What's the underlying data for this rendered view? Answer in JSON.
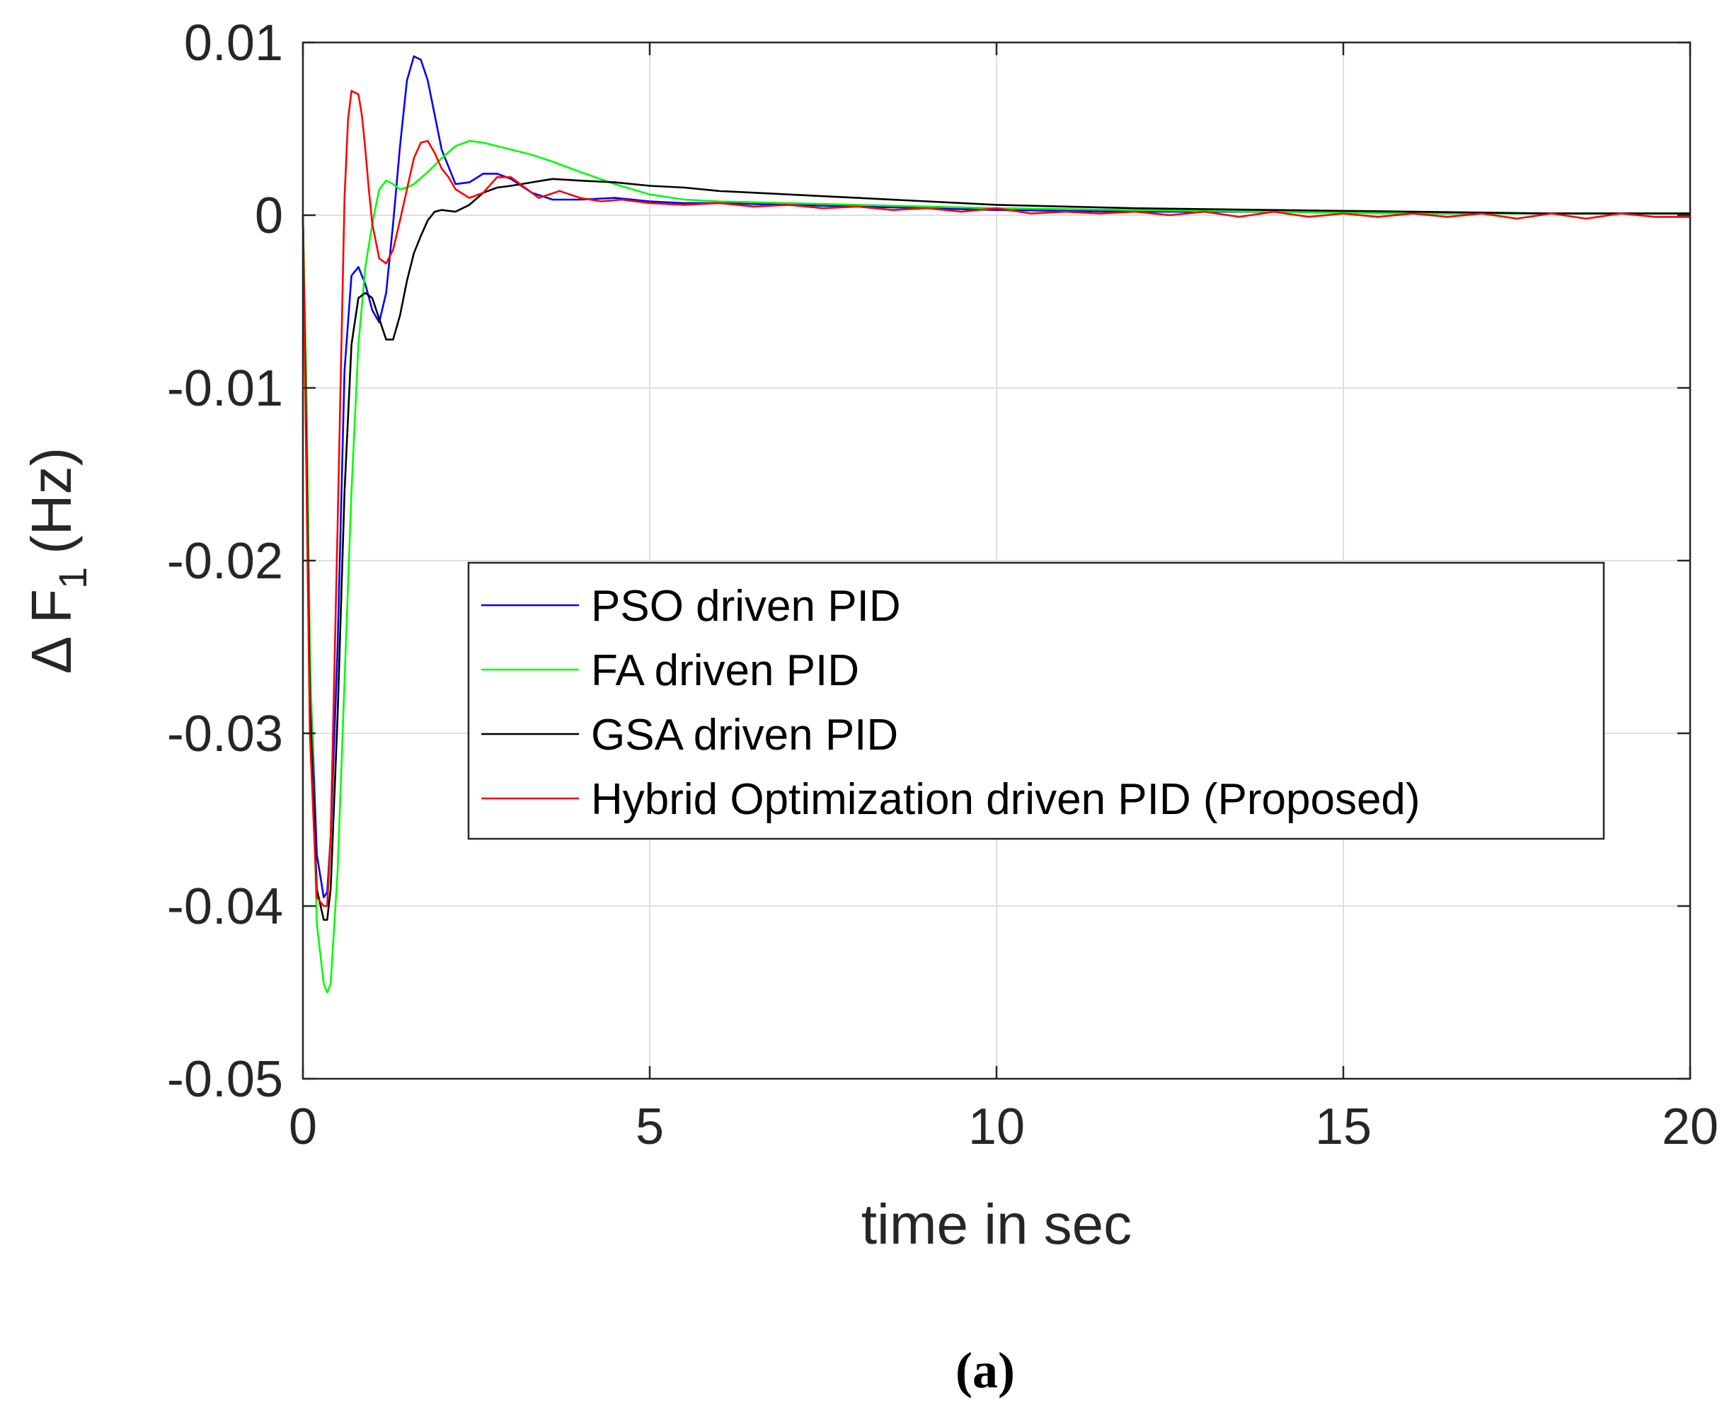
{
  "chart_data": {
    "type": "line",
    "xlabel": "time in sec",
    "ylabel_main": "Δ F",
    "ylabel_sub": "1",
    "ylabel_unit": "(Hz)",
    "caption": "(a)",
    "xlim": [
      0,
      20
    ],
    "ylim": [
      -0.05,
      0.01
    ],
    "xticks": [
      0,
      5,
      10,
      15,
      20
    ],
    "xtick_labels": [
      "0",
      "5",
      "10",
      "15",
      "20"
    ],
    "yticks": [
      0.01,
      0,
      -0.01,
      -0.02,
      -0.03,
      -0.04,
      -0.05
    ],
    "ytick_labels": [
      "0.01",
      "0",
      "-0.01",
      "-0.02",
      "-0.03",
      "-0.04",
      "-0.05"
    ],
    "grid": true,
    "legend_position": "center-right",
    "series": [
      {
        "name": "PSO driven PID",
        "color": "#0000ff",
        "x": [
          0,
          0.05,
          0.1,
          0.2,
          0.3,
          0.35,
          0.4,
          0.5,
          0.6,
          0.7,
          0.8,
          0.9,
          1.0,
          1.1,
          1.2,
          1.3,
          1.4,
          1.5,
          1.6,
          1.7,
          1.8,
          1.9,
          2.0,
          2.2,
          2.4,
          2.6,
          2.8,
          3.0,
          3.3,
          3.6,
          4.0,
          4.5,
          5.0,
          5.5,
          6.0,
          7.0,
          8.0,
          9.0,
          10.0,
          12.0,
          14.0,
          16.0,
          18.0,
          20.0
        ],
        "y": [
          0,
          -0.012,
          -0.026,
          -0.037,
          -0.0395,
          -0.0392,
          -0.036,
          -0.025,
          -0.009,
          -0.0035,
          -0.003,
          -0.004,
          -0.0055,
          -0.0062,
          -0.0045,
          -0.0005,
          0.004,
          0.0078,
          0.0092,
          0.009,
          0.0078,
          0.0058,
          0.0038,
          0.0018,
          0.0019,
          0.0024,
          0.0024,
          0.0021,
          0.0013,
          0.0009,
          0.0009,
          0.001,
          0.0008,
          0.0007,
          0.0007,
          0.0006,
          0.0005,
          0.0004,
          0.0003,
          0.0002,
          0.0002,
          0.0001,
          0.0001,
          0.0001
        ]
      },
      {
        "name": "FA driven PID",
        "color": "#00ff00",
        "x": [
          0,
          0.05,
          0.1,
          0.2,
          0.3,
          0.35,
          0.4,
          0.5,
          0.6,
          0.7,
          0.8,
          0.9,
          1.0,
          1.1,
          1.2,
          1.3,
          1.4,
          1.5,
          1.6,
          1.8,
          2.0,
          2.2,
          2.4,
          2.6,
          2.8,
          3.0,
          3.3,
          3.6,
          4.0,
          4.5,
          5.0,
          5.5,
          6.0,
          7.0,
          8.0,
          9.0,
          10.0,
          12.0,
          14.0,
          16.0,
          18.0,
          20.0
        ],
        "y": [
          0,
          -0.01,
          -0.025,
          -0.041,
          -0.0445,
          -0.045,
          -0.0445,
          -0.038,
          -0.027,
          -0.016,
          -0.0075,
          -0.003,
          -0.0005,
          0.0015,
          0.002,
          0.0018,
          0.0015,
          0.0016,
          0.0018,
          0.0025,
          0.0033,
          0.004,
          0.0043,
          0.0042,
          0.004,
          0.0038,
          0.0035,
          0.0031,
          0.0025,
          0.0018,
          0.0012,
          0.0009,
          0.0008,
          0.0007,
          0.0006,
          0.0005,
          0.0004,
          0.0003,
          0.0002,
          0.0001,
          0.0001,
          0.0001
        ]
      },
      {
        "name": "GSA driven PID",
        "color": "#000000",
        "x": [
          0,
          0.05,
          0.1,
          0.2,
          0.3,
          0.35,
          0.4,
          0.5,
          0.6,
          0.7,
          0.8,
          0.9,
          1.0,
          1.1,
          1.2,
          1.3,
          1.4,
          1.5,
          1.6,
          1.7,
          1.8,
          1.9,
          2.0,
          2.2,
          2.4,
          2.6,
          2.8,
          3.0,
          3.3,
          3.6,
          4.0,
          4.5,
          5.0,
          5.5,
          6.0,
          7.0,
          8.0,
          9.0,
          10.0,
          12.0,
          14.0,
          16.0,
          18.0,
          20.0
        ],
        "y": [
          0,
          -0.013,
          -0.028,
          -0.039,
          -0.0408,
          -0.0408,
          -0.039,
          -0.029,
          -0.016,
          -0.0075,
          -0.0048,
          -0.0045,
          -0.0048,
          -0.006,
          -0.0072,
          -0.0072,
          -0.0058,
          -0.0038,
          -0.0022,
          -0.0012,
          -0.0003,
          0.0002,
          0.0003,
          0.0002,
          0.0006,
          0.0013,
          0.0016,
          0.0017,
          0.0019,
          0.0021,
          0.002,
          0.0019,
          0.0017,
          0.0016,
          0.0014,
          0.0012,
          0.001,
          0.0008,
          0.0006,
          0.0004,
          0.0003,
          0.0002,
          0.0001,
          0.0001
        ]
      },
      {
        "name": "Hybrid Optimization driven PID (Proposed)",
        "color": "#ff0000",
        "x": [
          0,
          0.05,
          0.1,
          0.2,
          0.3,
          0.35,
          0.4,
          0.5,
          0.6,
          0.65,
          0.7,
          0.8,
          0.85,
          0.9,
          0.95,
          1.0,
          1.1,
          1.2,
          1.3,
          1.4,
          1.5,
          1.6,
          1.7,
          1.8,
          1.9,
          2.0,
          2.1,
          2.2,
          2.4,
          2.6,
          2.8,
          3.0,
          3.2,
          3.4,
          3.7,
          4.0,
          4.3,
          4.6,
          5.0,
          5.5,
          6.0,
          6.5,
          7.0,
          7.5,
          8.0,
          8.5,
          9.0,
          9.5,
          10.0,
          10.5,
          11.0,
          11.5,
          12.0,
          12.5,
          13.0,
          13.5,
          14.0,
          14.5,
          15.0,
          15.5,
          16.0,
          16.5,
          17.0,
          17.5,
          18.0,
          18.5,
          19.0,
          19.5,
          20.0
        ],
        "y": [
          0,
          -0.015,
          -0.03,
          -0.0395,
          -0.04,
          -0.04,
          -0.036,
          -0.018,
          0.001,
          0.0055,
          0.0072,
          0.007,
          0.0058,
          0.0038,
          0.0015,
          -0.0005,
          -0.0025,
          -0.0028,
          -0.002,
          -0.0003,
          0.0015,
          0.0033,
          0.0042,
          0.0043,
          0.0036,
          0.0027,
          0.0022,
          0.0015,
          0.001,
          0.0013,
          0.0022,
          0.0022,
          0.0016,
          0.001,
          0.0014,
          0.001,
          0.0008,
          0.0009,
          0.0007,
          0.0006,
          0.0007,
          0.0005,
          0.0006,
          0.0004,
          0.0005,
          0.0003,
          0.0004,
          0.0002,
          0.0004,
          0.0001,
          0.0002,
          0.0001,
          0.0002,
          0.0,
          0.0002,
          -0.0001,
          0.0002,
          -0.0001,
          0.0001,
          -0.0001,
          0.0001,
          -0.0001,
          0.0001,
          -0.0002,
          0.0001,
          -0.0002,
          0.0001,
          -0.0001,
          -0.0001
        ]
      }
    ]
  }
}
